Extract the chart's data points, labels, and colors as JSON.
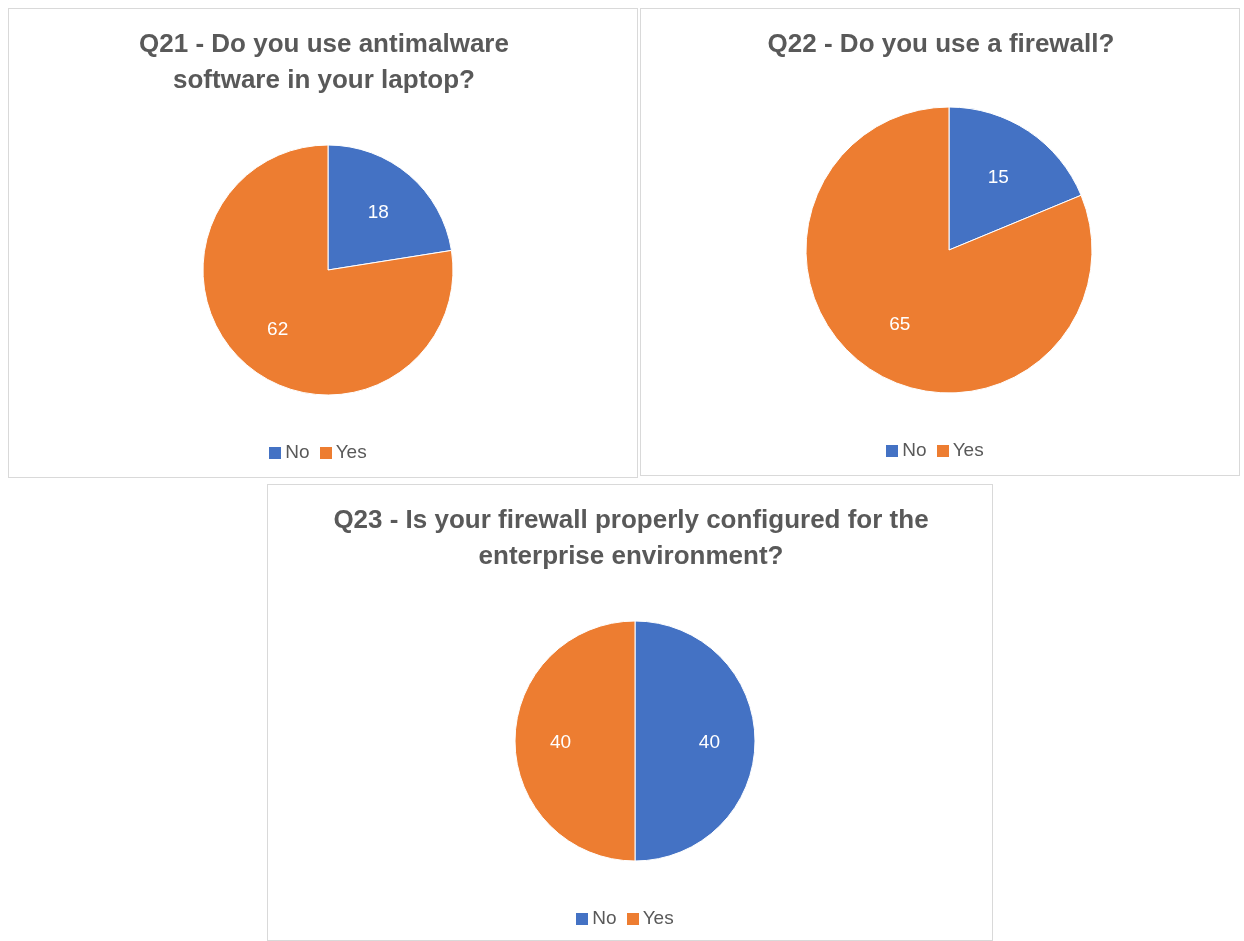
{
  "chart_data": [
    {
      "type": "pie",
      "title": "Q21 - Do you use antimalware software in your laptop?",
      "categories": [
        "No",
        "Yes"
      ],
      "values": [
        18,
        62
      ],
      "colors": [
        "#4472c4",
        "#ed7d31"
      ],
      "data_labels": true,
      "legend": "bottom"
    },
    {
      "type": "pie",
      "title": "Q22 - Do you use a firewall?",
      "categories": [
        "No",
        "Yes"
      ],
      "values": [
        15,
        65
      ],
      "colors": [
        "#4472c4",
        "#ed7d31"
      ],
      "data_labels": true,
      "legend": "bottom"
    },
    {
      "type": "pie",
      "title": "Q23 - Is your firewall properly configured for the enterprise environment?",
      "categories": [
        "No",
        "Yes"
      ],
      "values": [
        40,
        40
      ],
      "colors": [
        "#4472c4",
        "#ed7d31"
      ],
      "data_labels": true,
      "legend": "bottom"
    }
  ]
}
